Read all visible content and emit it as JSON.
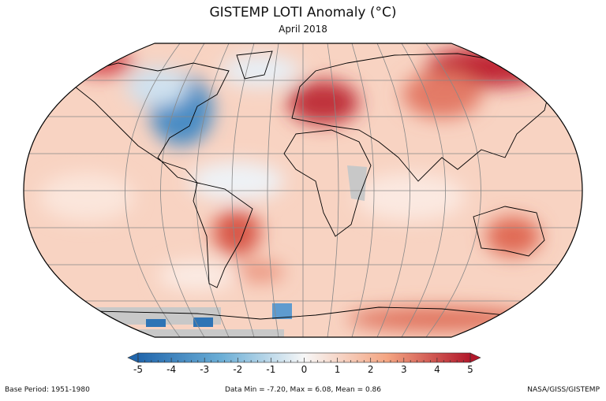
{
  "header": {
    "title": "GISTEMP LOTI Anomaly (°C)",
    "subtitle": "April 2018"
  },
  "colorbar": {
    "min": -5,
    "max": 5,
    "ticks": [
      "-5",
      "-4",
      "-3",
      "-2",
      "-1",
      "0",
      "1",
      "2",
      "3",
      "4",
      "5"
    ],
    "colors": {
      "low": "#2166ac",
      "mid": "#f7f7f7",
      "high": "#b2182b",
      "missing": "#c8c8c8"
    }
  },
  "footer": {
    "base_period": "Base Period: 1951-1980",
    "stats": "Data Min = -7.20, Max = 6.08, Mean = 0.86",
    "source": "NASA/GISS/GISTEMP"
  }
}
